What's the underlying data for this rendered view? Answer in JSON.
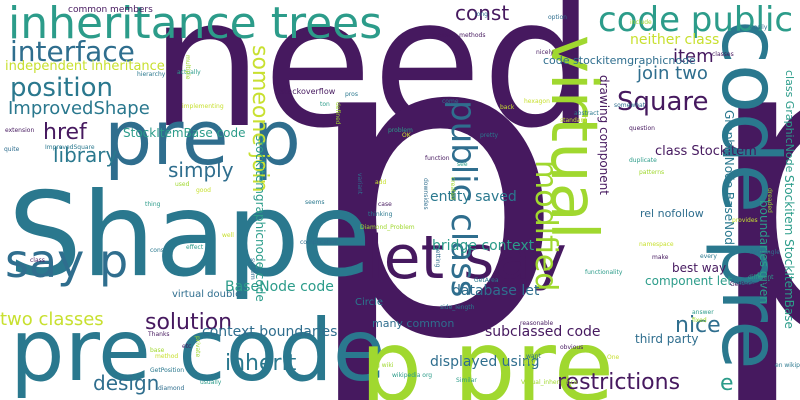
{
  "words": {
    "need": "need",
    "p_big": "p p",
    "shape": "Shape",
    "pre_code_bottom": "pre code",
    "p_pre_bottom": "p pre",
    "code_pre_vert": "code pre",
    "pre_p": "pre p",
    "let_say": "let say",
    "virtual": "virtual",
    "inheritance_trees": "inheritance trees",
    "say_p": "say p",
    "code_public": "code public",
    "interface": "interface",
    "position": "position",
    "square": "Square",
    "public_class": "public class",
    "modified": "modified",
    "someone_join": "someone join",
    "join_two": "join two",
    "item": "item",
    "const": "const",
    "improvedshape": "ImprovedShape",
    "href": "href",
    "library": "library",
    "simply": "simply",
    "nice": "nice",
    "solution": "solution",
    "inherit": "inherit",
    "design": "design",
    "restrictions": "restrictions",
    "e": "e",
    "two_classes": "two classes",
    "entity_saved": "entity saved",
    "bridge_context": "bridge context",
    "database_let": "database let",
    "subclassed_code": "subclassed code",
    "displayed_using": "displayed using",
    "basenode_code": "BaseNode code",
    "context_boundaries": "context boundaries",
    "stockitembase_code": "StockItemBase code",
    "independent_inheritance": "independent inheritance",
    "neither_class": "neither class",
    "class_stockitem": "class Stockitem",
    "code_stockitemgraphicnode": "code stockitemgraphicnode",
    "drawing_component": "drawing component",
    "graphicnode_basenode": "GraphicNode BaseNode",
    "stockitem_stockitembase": "Stockitem StockItemBase",
    "boundaries_given": "boundaries given",
    "class_graphicnode": "class GraphicNode",
    "rel_nofollow": "rel nofollow",
    "best_way": "best way",
    "component_let": "component let",
    "third_party": "third party",
    "stockitemgraphicnode_code": "stockitemgraphicnode code",
    "many_common": "many common",
    "virtual_double": "virtual double",
    "common_members": "common members",
    "stackoverflow": "stackoverflow",
    "circle": "Circle"
  },
  "tiny_words": [
    "extension methods",
    "option",
    "hierarchy",
    "actually",
    "multiple",
    "implementing",
    "extension",
    "quite",
    "ImprovedSquare",
    "thing",
    "used",
    "good",
    "class",
    "system",
    "cons",
    "effect",
    "base",
    "method",
    "etc",
    "diamond",
    "GetPosition",
    "usually",
    "private",
    "well",
    "Thanks",
    "complicated",
    "seems",
    "wikipedia org",
    "org wiki",
    "add",
    "case",
    "variant",
    "thinking",
    "problem",
    "Diamond_Problem",
    "OK",
    "function",
    "come",
    "pretty",
    "see",
    "created",
    "hexagon",
    "question",
    "somewhat",
    "abstract",
    "duplicate",
    "patterns",
    "namespace",
    "make",
    "getting",
    "side_length",
    "Similar",
    "Virtual_inheritance",
    "bite",
    "reasonable",
    "want",
    "every",
    "different",
    "dreaded",
    "provides",
    "GetPerimeter",
    "Rectangle",
    "en wikipedia",
    "answer",
    "fixed",
    "One",
    "obvious",
    "downsides",
    "GetArea",
    "functionality",
    "include",
    "back",
    "classes",
    "easily",
    "pros",
    "ton",
    "defined",
    "standard",
    "nicely",
    "long"
  ],
  "colors": {
    "dark_purple": "#46195f",
    "teal": "#2a788e",
    "blue": "#2f6e8e",
    "green_teal": "#2c9c8a",
    "lime": "#a0d82f",
    "yellow": "#c8e030"
  }
}
